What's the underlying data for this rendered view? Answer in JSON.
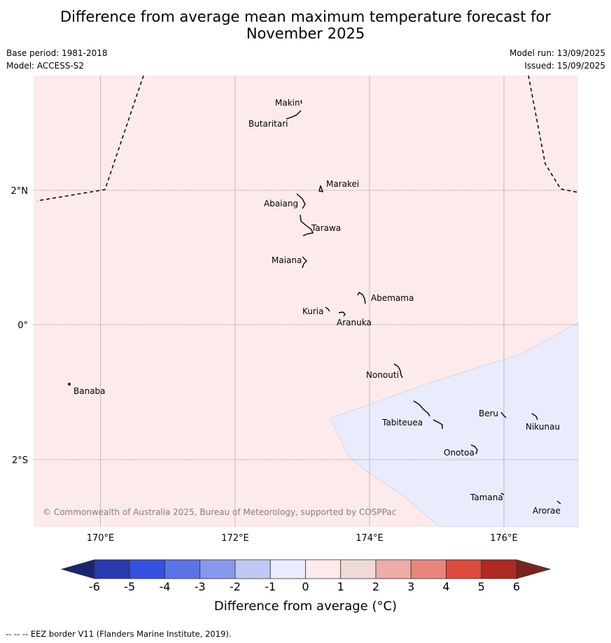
{
  "title": {
    "line1": "Difference from average mean maximum temperature forecast for",
    "line2": "November 2025"
  },
  "meta": {
    "base_period": "Base period: 1981-2018",
    "model": "Model: ACCESS-S2",
    "model_run": "Model run: 13/09/2025",
    "issued": "Issued: 15/09/2025"
  },
  "map": {
    "lon_labels": [
      "170°E",
      "172°E",
      "174°E",
      "176°E"
    ],
    "lat_labels": [
      "2°N",
      "0°",
      "2°S"
    ],
    "copyright": "© Commonwealth of Australia 2025, Bureau of Meteorology, supported by COSPPac",
    "islands": [
      {
        "name": "Makin",
        "lon": 172.97,
        "lat": 3.33
      },
      {
        "name": "Butaritari",
        "lon": 172.8,
        "lat": 3.1
      },
      {
        "name": "Marakei",
        "lon": 173.3,
        "lat": 2.0
      },
      {
        "name": "Abaiang",
        "lon": 172.97,
        "lat": 1.85
      },
      {
        "name": "Tarawa",
        "lon": 173.05,
        "lat": 1.45
      },
      {
        "name": "Maiana",
        "lon": 173.02,
        "lat": 0.93
      },
      {
        "name": "Abemama",
        "lon": 173.85,
        "lat": 0.4
      },
      {
        "name": "Kuria",
        "lon": 173.4,
        "lat": 0.23
      },
      {
        "name": "Aranuka",
        "lon": 173.6,
        "lat": 0.16
      },
      {
        "name": "Nonouti",
        "lon": 174.4,
        "lat": -0.65
      },
      {
        "name": "Banaba",
        "lon": 169.55,
        "lat": -0.88
      },
      {
        "name": "Tabiteuea",
        "lon": 174.9,
        "lat": -1.38
      },
      {
        "name": "Beru",
        "lon": 175.98,
        "lat": -1.33
      },
      {
        "name": "Nikunau",
        "lon": 176.45,
        "lat": -1.37
      },
      {
        "name": "Onotoa",
        "lon": 175.55,
        "lat": -1.83
      },
      {
        "name": "Tamana",
        "lon": 175.98,
        "lat": -2.5
      },
      {
        "name": "Arorae",
        "lon": 176.82,
        "lat": -2.65
      }
    ],
    "shading": {
      "background_category": "0 to 1",
      "region_category": "-1 to 0"
    }
  },
  "colorbar": {
    "ticks": [
      "-6",
      "-5",
      "-4",
      "-3",
      "-2",
      "-1",
      "0",
      "1",
      "2",
      "3",
      "4",
      "5",
      "6"
    ],
    "colors": [
      "#2a3ab0",
      "#3450e0",
      "#5a74e8",
      "#8898ee",
      "#c0c8f4",
      "#e8ecfc",
      "#fcebea",
      "#f0dad8",
      "#ecaca8",
      "#e8857c",
      "#dc4a3c",
      "#ae2a22"
    ],
    "low_extend_color": "#1a2470",
    "high_extend_color": "#78241c",
    "label": "Difference from average (°C)"
  },
  "credit": "-- -- -- EEZ border V11 (Flanders Marine Institute, 2019)."
}
